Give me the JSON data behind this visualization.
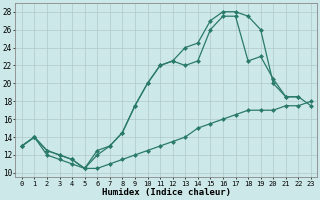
{
  "xlabel": "Humidex (Indice chaleur)",
  "background_color": "#cde8e8",
  "grid_color": "#b0c8c8",
  "line_color": "#2a7a6a",
  "xlim": [
    -0.5,
    23.5
  ],
  "ylim": [
    9.5,
    29.0
  ],
  "xtick_labels": [
    "0",
    "1",
    "2",
    "3",
    "4",
    "5",
    "6",
    "7",
    "8",
    "9",
    "10",
    "11",
    "12",
    "13",
    "14",
    "15",
    "16",
    "17",
    "18",
    "19",
    "20",
    "21",
    "22",
    "23"
  ],
  "ytick_values": [
    10,
    12,
    14,
    16,
    18,
    20,
    22,
    24,
    26,
    28
  ],
  "curve1_x": [
    0,
    1,
    2,
    3,
    4,
    5,
    6,
    7,
    8,
    9,
    10,
    11,
    12,
    13,
    14,
    15,
    16,
    17,
    18,
    19,
    20,
    21,
    22,
    23
  ],
  "curve1_y": [
    13.0,
    14.0,
    12.5,
    12.0,
    11.5,
    10.5,
    10.5,
    11.0,
    11.5,
    12.0,
    12.5,
    13.0,
    13.5,
    14.0,
    15.0,
    15.5,
    16.0,
    16.5,
    17.0,
    17.0,
    17.0,
    17.5,
    17.5,
    18.0
  ],
  "curve2_x": [
    0,
    1,
    2,
    3,
    4,
    5,
    6,
    7,
    8,
    9,
    10,
    11,
    12,
    13,
    14,
    15,
    16,
    17,
    18,
    19,
    20,
    21,
    22,
    23
  ],
  "curve2_y": [
    13.0,
    14.0,
    12.5,
    12.0,
    11.5,
    10.5,
    12.0,
    13.0,
    14.5,
    17.5,
    20.0,
    22.0,
    22.5,
    24.0,
    24.5,
    27.0,
    28.0,
    28.0,
    27.5,
    26.0,
    20.0,
    18.5,
    18.5,
    17.5
  ],
  "curve3_x": [
    0,
    1,
    2,
    3,
    4,
    5,
    6,
    7,
    8,
    9,
    10,
    11,
    12,
    13,
    14,
    15,
    16,
    17,
    18,
    19,
    20,
    21,
    22
  ],
  "curve3_y": [
    13.0,
    14.0,
    12.0,
    11.5,
    11.0,
    10.5,
    12.5,
    13.0,
    14.5,
    17.5,
    20.0,
    22.0,
    22.5,
    22.0,
    22.5,
    26.0,
    27.5,
    27.5,
    22.5,
    23.0,
    20.5,
    18.5,
    18.5
  ]
}
